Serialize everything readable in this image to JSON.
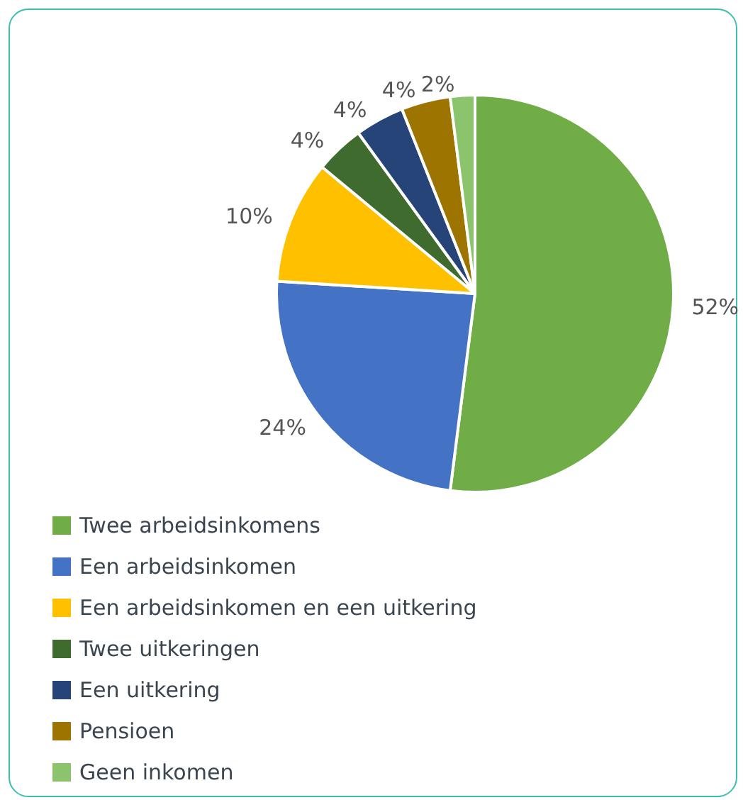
{
  "chart_data": {
    "type": "pie",
    "categories": [
      "Twee arbeidsinkomens",
      "Een arbeidsinkomen",
      "Een arbeidsinkomen en een uitkering",
      "Twee uitkeringen",
      "Een uitkering",
      "Pensioen",
      "Geen inkomen"
    ],
    "values": [
      52,
      24,
      10,
      4,
      4,
      4,
      2
    ],
    "value_labels": [
      "52%",
      "24%",
      "10%",
      "4%",
      "4%",
      "4%",
      "2%"
    ],
    "colors": [
      "#70ad47",
      "#4472c4",
      "#ffc000",
      "#3f6b2e",
      "#264478",
      "#9e7400",
      "#8cc46e"
    ],
    "legend": "bottom left"
  }
}
